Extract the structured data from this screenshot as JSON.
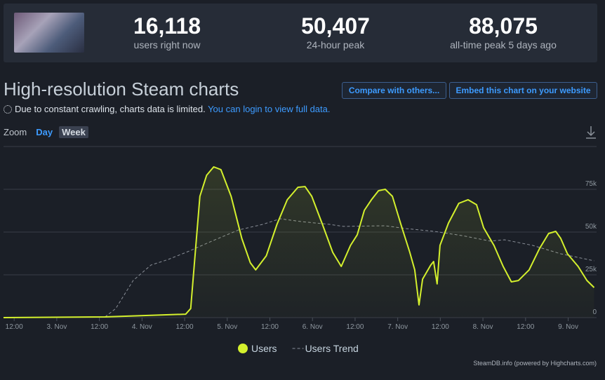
{
  "header": {
    "stats": [
      {
        "value": "16,118",
        "label": "users right now"
      },
      {
        "value": "50,407",
        "label": "24-hour peak"
      },
      {
        "value": "88,075",
        "label": "all-time peak 5 days ago"
      }
    ]
  },
  "section": {
    "title": "High-resolution Steam charts",
    "buttons": [
      "Compare with others...",
      "Embed this chart on your website"
    ],
    "notice": "Due to constant crawling, charts data is limited.",
    "notice_link": "You can login to view full data.",
    "zoom_label": "Zoom",
    "zoom_options": [
      "Day",
      "Week"
    ],
    "credit": "SteamDB.info (powered by Highcharts.com)"
  },
  "chart_data": {
    "type": "line",
    "xlim": [
      9,
      176
    ],
    "xticks": [
      {
        "value": 12,
        "label": "12:00"
      },
      {
        "value": 24,
        "label": "3. Nov"
      },
      {
        "value": 36,
        "label": "12:00"
      },
      {
        "value": 48,
        "label": "4. Nov"
      },
      {
        "value": 60,
        "label": "12:00"
      },
      {
        "value": 72,
        "label": "5. Nov"
      },
      {
        "value": 84,
        "label": "12:00"
      },
      {
        "value": 96,
        "label": "6. Nov"
      },
      {
        "value": 108,
        "label": "12:00"
      },
      {
        "value": 120,
        "label": "7. Nov"
      },
      {
        "value": 132,
        "label": "12:00"
      },
      {
        "value": 144,
        "label": "8. Nov"
      },
      {
        "value": 156,
        "label": "12:00"
      },
      {
        "value": 168,
        "label": "9. Nov"
      }
    ],
    "ylim": [
      0,
      100000
    ],
    "yticks": [
      0,
      {
        "value": 25000,
        "label": "25k"
      },
      {
        "value": 50000,
        "label": "50k"
      },
      {
        "value": 75000,
        "label": "75k"
      }
    ],
    "grid": true,
    "series": [
      {
        "name": "Users",
        "color": "#d4f02d",
        "dash": false,
        "area": true,
        "x": [
          9,
          37.6,
          60.3,
          61.7,
          64.3,
          66.2,
          68.2,
          70.2,
          73.1,
          76.1,
          78.5,
          80,
          83,
          86,
          88.9,
          91.9,
          93.9,
          95.8,
          98.8,
          101.7,
          104.1,
          106.7,
          108.6,
          110.6,
          112.6,
          114.6,
          116.5,
          118.5,
          120.9,
          123.4,
          124.8,
          126,
          127,
          129.3,
          130.1,
          131.1,
          131.9,
          134.3,
          137.2,
          139.8,
          142.2,
          144.2,
          147.1,
          149.7,
          152,
          154,
          157,
          159.9,
          162.5,
          164.5,
          165.9,
          167.8,
          170.8,
          173.3,
          175.3
        ],
        "values": [
          0,
          400,
          2000,
          5300,
          70900,
          83200,
          88100,
          86500,
          70900,
          46300,
          32000,
          27900,
          36100,
          54500,
          68900,
          76200,
          76600,
          70900,
          54500,
          38100,
          29900,
          42200,
          48400,
          62700,
          68900,
          74200,
          75000,
          70900,
          54500,
          38100,
          27900,
          7400,
          22500,
          30700,
          32800,
          19700,
          42200,
          55300,
          66800,
          68900,
          66000,
          52500,
          42200,
          29900,
          20900,
          21700,
          27900,
          40200,
          49200,
          50400,
          46300,
          37300,
          29900,
          21700,
          17600
        ]
      },
      {
        "name": "Users Trend",
        "color": "#8a8f98",
        "dash": true,
        "area": false,
        "x": [
          37.6,
          40.6,
          45.5,
          50.5,
          55.4,
          61.3,
          67.2,
          75.1,
          82,
          86.9,
          92.9,
          100.8,
          104.7,
          116.5,
          122.5,
          130.3,
          138.2,
          146.1,
          150.1,
          158,
          165.9,
          175.3
        ],
        "values": [
          400,
          5300,
          21700,
          30700,
          34000,
          38900,
          44300,
          51200,
          54500,
          57800,
          56100,
          54500,
          53300,
          53700,
          52000,
          50400,
          47900,
          44700,
          45500,
          42200,
          37300,
          33200
        ]
      }
    ]
  }
}
